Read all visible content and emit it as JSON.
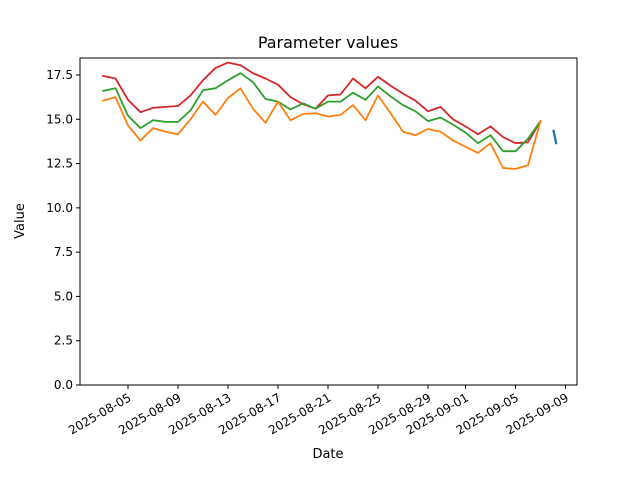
{
  "chart_data": {
    "type": "line",
    "title": "Parameter values",
    "xlabel": "Date",
    "ylabel": "Value",
    "grid": false,
    "legend": "none",
    "ylim": [
      0,
      18.46
    ],
    "xlim_day_offsets": [
      -1.84,
      37.92
    ],
    "y_tick_labels": [
      "0.0",
      "2.5",
      "5.0",
      "7.5",
      "10.0",
      "12.5",
      "15.0",
      "17.5"
    ],
    "y_tick_values": [
      0,
      2.5,
      5,
      7.5,
      10,
      12.5,
      15,
      17.5
    ],
    "x_tick_labels": [
      "2025-08-05",
      "2025-08-09",
      "2025-08-13",
      "2025-08-17",
      "2025-08-21",
      "2025-08-25",
      "2025-08-29",
      "2025-09-01",
      "2025-09-05",
      "2025-09-09"
    ],
    "x_tick_day_offsets": [
      2,
      6,
      10,
      14,
      18,
      22,
      26,
      29,
      33,
      37
    ],
    "x_dates": [
      "2025-08-03",
      "2025-08-04",
      "2025-08-05",
      "2025-08-06",
      "2025-08-07",
      "2025-08-08",
      "2025-08-09",
      "2025-08-10",
      "2025-08-11",
      "2025-08-12",
      "2025-08-13",
      "2025-08-14",
      "2025-08-15",
      "2025-08-16",
      "2025-08-17",
      "2025-08-18",
      "2025-08-19",
      "2025-08-20",
      "2025-08-21",
      "2025-08-22",
      "2025-08-23",
      "2025-08-24",
      "2025-08-25",
      "2025-08-26",
      "2025-08-27",
      "2025-08-28",
      "2025-08-29",
      "2025-08-30",
      "2025-08-31",
      "2025-09-01",
      "2025-09-02",
      "2025-09-03",
      "2025-09-04",
      "2025-09-05",
      "2025-09-06",
      "2025-09-07"
    ],
    "series": [
      {
        "name": "red-line",
        "color": "#d62728",
        "values": [
          17.45,
          17.3,
          16.1,
          15.4,
          15.65,
          15.7,
          15.75,
          16.35,
          17.2,
          17.9,
          18.2,
          18.05,
          17.6,
          17.3,
          16.95,
          16.25,
          15.85,
          15.6,
          16.35,
          16.4,
          17.3,
          16.75,
          17.4,
          16.9,
          16.45,
          16.05,
          15.45,
          15.7,
          15.0,
          14.6,
          14.15,
          14.6,
          14.0,
          13.65,
          13.7,
          14.9
        ]
      },
      {
        "name": "green-line",
        "color": "#2ca02c",
        "values": [
          16.6,
          16.75,
          15.2,
          14.5,
          14.95,
          14.85,
          14.85,
          15.5,
          16.65,
          16.75,
          17.2,
          17.6,
          17.1,
          16.15,
          16.0,
          15.55,
          15.9,
          15.6,
          16.0,
          16.0,
          16.5,
          16.1,
          16.85,
          16.3,
          15.8,
          15.45,
          14.9,
          15.1,
          14.7,
          14.25,
          13.65,
          14.1,
          13.2,
          13.2,
          13.9,
          14.9
        ]
      },
      {
        "name": "orange-line",
        "color": "#ff7f0e",
        "values": [
          16.05,
          16.25,
          14.65,
          13.8,
          14.5,
          14.3,
          14.15,
          15.0,
          16.0,
          15.25,
          16.2,
          16.75,
          15.6,
          14.8,
          16.0,
          14.95,
          15.3,
          15.35,
          15.15,
          15.25,
          15.8,
          14.95,
          16.35,
          15.35,
          14.3,
          14.1,
          14.45,
          14.3,
          13.8,
          13.45,
          13.1,
          13.65,
          12.25,
          12.2,
          12.4,
          14.9
        ]
      }
    ],
    "short_series": {
      "name": "blue-dash",
      "color": "#1f77b4",
      "points": [
        {
          "date": "2025-09-08",
          "day_offset": 36.05,
          "value": 14.35
        },
        {
          "date": "2025-09-08",
          "day_offset": 36.25,
          "value": 13.65
        }
      ]
    }
  }
}
